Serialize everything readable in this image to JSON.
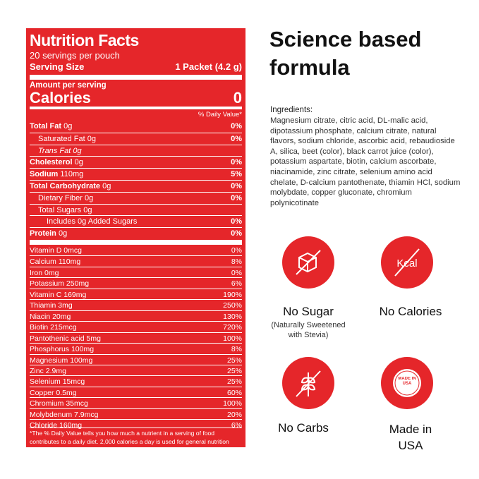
{
  "nutrition": {
    "title": "Nutrition Facts",
    "servings": "20 servings per pouch",
    "serving_size_label": "Serving Size",
    "serving_size": "1 Packet (4.2 g)",
    "amount_per_serving": "Amount per serving",
    "calories_label": "Calories",
    "calories": "0",
    "dv_header": "% Daily Value*",
    "macros": [
      {
        "name": "Total Fat",
        "amount": "0g",
        "dv": "0%",
        "bold": true
      },
      {
        "name": "Saturated Fat",
        "amount": "0g",
        "dv": "0%",
        "level": 1
      },
      {
        "name": "Trans Fat",
        "amount": "0g",
        "level": 1,
        "italic": true
      },
      {
        "name": "Cholesterol",
        "amount": "0g",
        "dv": "0%",
        "bold": true
      },
      {
        "name": "Sodium",
        "amount": "110mg",
        "dv": "5%",
        "bold": true
      },
      {
        "name": "Total Carbohydrate",
        "amount": "0g",
        "dv": "0%",
        "bold": true
      },
      {
        "name": "Dietary Fiber",
        "amount": "0g",
        "dv": "0%",
        "level": 1
      },
      {
        "name": "Total Sugars",
        "amount": "0g",
        "level": 1
      },
      {
        "name": "Includes 0g Added Sugars",
        "dv": "0%",
        "level": 2
      },
      {
        "name": "Protein",
        "amount": "0g",
        "dv": "0%",
        "bold": true
      }
    ],
    "micros": [
      {
        "name": "Vitamin D 0mcg",
        "dv": "0%"
      },
      {
        "name": "Calcium 110mg",
        "dv": "8%"
      },
      {
        "name": "Iron 0mg",
        "dv": "0%"
      },
      {
        "name": "Potassium 250mg",
        "dv": "6%"
      },
      {
        "name": "Vitamin C 169mg",
        "dv": "190%"
      },
      {
        "name": "Thiamin 3mg",
        "dv": "250%"
      },
      {
        "name": "Niacin 20mg",
        "dv": "130%"
      },
      {
        "name": "Biotin 215mcg",
        "dv": "720%"
      },
      {
        "name": "Pantothenic acid 5mg",
        "dv": "100%"
      },
      {
        "name": "Phosphorus 100mg",
        "dv": "8%"
      },
      {
        "name": "Magnesium 100mg",
        "dv": "25%"
      },
      {
        "name": "Zinc 2.9mg",
        "dv": "25%"
      },
      {
        "name": "Selenium 15mcg",
        "dv": "25%"
      },
      {
        "name": "Copper 0.5mg",
        "dv": "60%"
      },
      {
        "name": "Chromium 35mcg",
        "dv": "100%"
      },
      {
        "name": "Molybdenum 7.9mcg",
        "dv": "20%"
      },
      {
        "name": "Chloride 160mg",
        "dv": "6%"
      }
    ],
    "footnote": "*The % Daily Value tells you how much a nutrient in a serving of food contributes to a daily diet. 2,000 calories a day is used for general nutrition advice."
  },
  "heading": "Science based formula",
  "ingredients_label": "Ingredients:",
  "ingredients": "Magnesium citrate, citric acid, DL-malic acid, dipotassium phosphate, calcium citrate, natural flavors, sodium chloride, ascorbic acid, rebaudioside A, silica, beet (color), black carrot juice (color), potassium aspartate, biotin, calcium ascorbate, niacinamide, zinc citrate, selenium amino acid chelate, D-calcium pantothenate, thiamin HCl, sodium molybdate, copper gluconate, chromium polynicotinate",
  "badges": [
    {
      "label": "No Sugar",
      "note": "(Naturally Sweetened with Stevia)"
    },
    {
      "label": "No Calories",
      "icon_text": "Kcal"
    },
    {
      "label": "No Carbs"
    },
    {
      "label": "Made in USA",
      "icon_text": "MADE IN USA"
    }
  ]
}
